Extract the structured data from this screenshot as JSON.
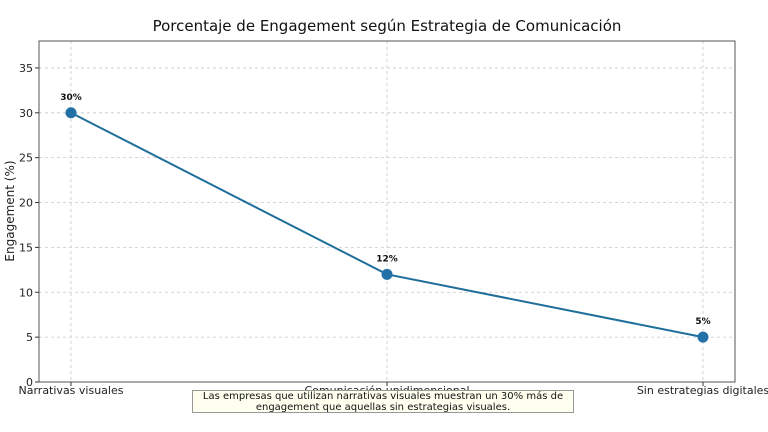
{
  "chart_data": {
    "type": "line",
    "title": "Porcentaje de Engagement según Estrategia de Comunicación",
    "xlabel": "",
    "ylabel": "Engagement (%)",
    "categories": [
      "Narrativas visuales",
      "Comunicación unidimensional",
      "Sin estrategias digitales"
    ],
    "series": [
      {
        "values": [
          30,
          12,
          5
        ],
        "color": "#1f6f9b",
        "marker_color": "#2471a8"
      }
    ],
    "data_labels": [
      "30%",
      "12%",
      "5%"
    ],
    "ylim": [
      0,
      38
    ],
    "yticks": [
      0,
      5,
      10,
      15,
      20,
      25,
      30,
      35
    ],
    "grid": true,
    "annotation": "Las empresas que utilizan narrativas visuales muestran un 30% más de engagement que aquellas sin estrategias visuales."
  }
}
